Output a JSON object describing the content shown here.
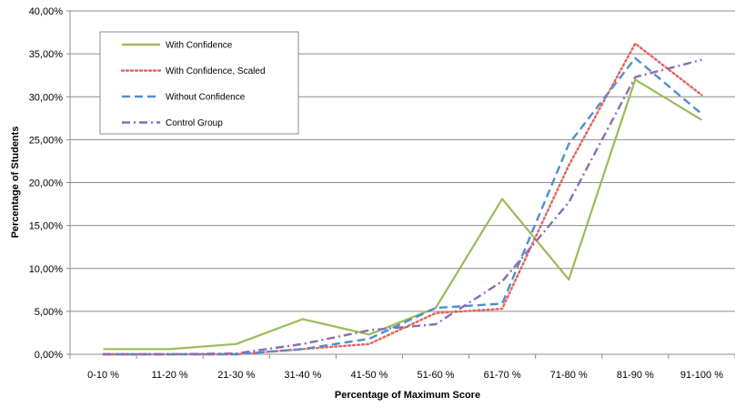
{
  "chart_data": {
    "type": "line",
    "title": "",
    "xlabel": "Percentage of Maximum Score",
    "ylabel": "Percentage of Students",
    "ylim": [
      0,
      40
    ],
    "y_ticks": [
      0,
      5,
      10,
      15,
      20,
      25,
      30,
      35,
      40
    ],
    "y_tick_labels": [
      "0,00%",
      "5,00%",
      "10,00%",
      "15,00%",
      "20,00%",
      "25,00%",
      "30,00%",
      "35,00%",
      "40,00%"
    ],
    "categories": [
      "0-10 %",
      "11-20 %",
      "21-30 %",
      "31-40 %",
      "41-50 %",
      "51-60 %",
      "61-70 %",
      "71-80 %",
      "81-90 %",
      "91-100 %"
    ],
    "grid": "horizontal",
    "legend_position": "top-left",
    "series": [
      {
        "name": "With Confidence",
        "values": [
          0.6,
          0.6,
          1.2,
          4.1,
          2.3,
          5.4,
          18.1,
          8.7,
          32.0,
          27.3
        ],
        "color": "#9BBB59",
        "dash": "solid"
      },
      {
        "name": "With Confidence, Scaled",
        "values": [
          0.0,
          0.0,
          0.0,
          0.6,
          1.2,
          4.8,
          5.3,
          22.0,
          36.2,
          30.2
        ],
        "color": "#E3625A",
        "dash": "dotted"
      },
      {
        "name": "Without Confidence",
        "values": [
          0.0,
          0.0,
          0.0,
          0.6,
          1.8,
          5.4,
          5.9,
          24.5,
          34.5,
          28.0
        ],
        "color": "#4F8FD0",
        "dash": "dashed"
      },
      {
        "name": "Control Group",
        "values": [
          0.0,
          0.0,
          0.1,
          1.2,
          2.8,
          3.5,
          8.5,
          17.7,
          32.3,
          34.3
        ],
        "color": "#8E6BB0",
        "dash": "dashdot"
      }
    ]
  }
}
